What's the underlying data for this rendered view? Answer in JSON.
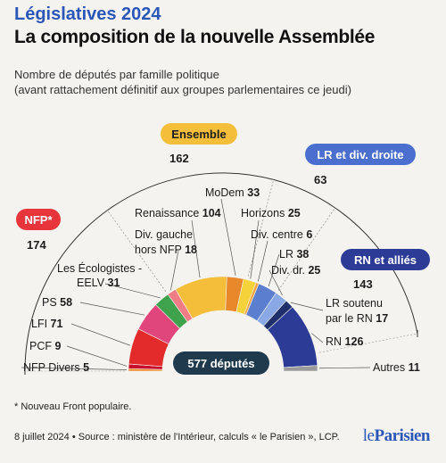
{
  "header": {
    "kicker": "Législatives 2024",
    "title": "La composition de la nouvelle Assemblée",
    "subtitle_line1": "Nombre de députés par famille politique",
    "subtitle_line2": "(avant rattachement définitif aux groupes parlementaires ce jeudi)"
  },
  "chart_data": {
    "type": "pie",
    "subtype": "hemicycle",
    "total_label": "577 députés",
    "total": 577,
    "slices": [
      {
        "label": "NFP Divers",
        "value": 5,
        "color": "#ef8a2b"
      },
      {
        "label": "PCF",
        "value": 9,
        "color": "#c8102e"
      },
      {
        "label": "LFI",
        "value": 71,
        "color": "#e32b2b"
      },
      {
        "label": "PS",
        "value": 58,
        "color": "#e0457b"
      },
      {
        "label": "Les Écologistes - EELV",
        "value": 31,
        "color": "#3fa34d"
      },
      {
        "label": "Div. gauche hors NFP",
        "value": 18,
        "color": "#f07c86"
      },
      {
        "label": "Renaissance",
        "value": 104,
        "color": "#f4be3b"
      },
      {
        "label": "MoDem",
        "value": 33,
        "color": "#e8882a"
      },
      {
        "label": "Horizons",
        "value": 25,
        "color": "#f6d23a"
      },
      {
        "label": "Div. centre",
        "value": 6,
        "color": "#f3a640"
      },
      {
        "label": "LR",
        "value": 38,
        "color": "#5b7fce"
      },
      {
        "label": "Div. dr.",
        "value": 25,
        "color": "#8aa7e6"
      },
      {
        "label": "LR soutenu par le RN",
        "value": 17,
        "color": "#1e2f6b"
      },
      {
        "label": "RN",
        "value": 126,
        "color": "#2c3b96"
      },
      {
        "label": "Autres",
        "value": 11,
        "color": "#9a9a9a"
      }
    ],
    "groups": [
      {
        "label": "NFP*",
        "value": 174,
        "color": "#e8343b",
        "text_color": "#ffffff"
      },
      {
        "label": "Ensemble",
        "value": 162,
        "color": "#f4be3b",
        "text_color": "#1c1c1c"
      },
      {
        "label": "LR et div. droite",
        "value": 63,
        "color": "#4a6fcf",
        "text_color": "#ffffff"
      },
      {
        "label": "RN et alliés",
        "value": 143,
        "color": "#2c3b96",
        "text_color": "#ffffff"
      }
    ],
    "legend": "none"
  },
  "labels": {
    "nfp_divers": {
      "name": "NFP Divers",
      "value": "5"
    },
    "pcf": {
      "name": "PCF",
      "value": "9"
    },
    "lfi": {
      "name": "LFI",
      "value": "71"
    },
    "ps": {
      "name": "PS",
      "value": "58"
    },
    "eelv_line1": "Les Écologistes -",
    "eelv_line2": {
      "name": "EELV",
      "value": "31"
    },
    "divg_line1": "Div. gauche",
    "divg_line2": {
      "name": "hors NFP",
      "value": "18"
    },
    "renaissance": {
      "name": "Renaissance",
      "value": "104"
    },
    "modem": {
      "name": "MoDem",
      "value": "33"
    },
    "horizons": {
      "name": "Horizons",
      "value": "25"
    },
    "divc": {
      "name": "Div. centre",
      "value": "6"
    },
    "lr": {
      "name": "LR",
      "value": "38"
    },
    "divd": {
      "name": "Div. dr.",
      "value": "25"
    },
    "lrrn_line1": "LR soutenu",
    "lrrn_line2": {
      "name": "par le RN",
      "value": "17"
    },
    "rn": {
      "name": "RN",
      "value": "126"
    },
    "autres": {
      "name": "Autres",
      "value": "11"
    }
  },
  "footer": {
    "footnote": "* Nouveau Front populaire.",
    "source": "8 juillet 2024 • Source : ministère de l'Intérieur, calculs « le Parisien », LCP.",
    "logo_prefix": "le",
    "logo_name": "Parisien"
  }
}
